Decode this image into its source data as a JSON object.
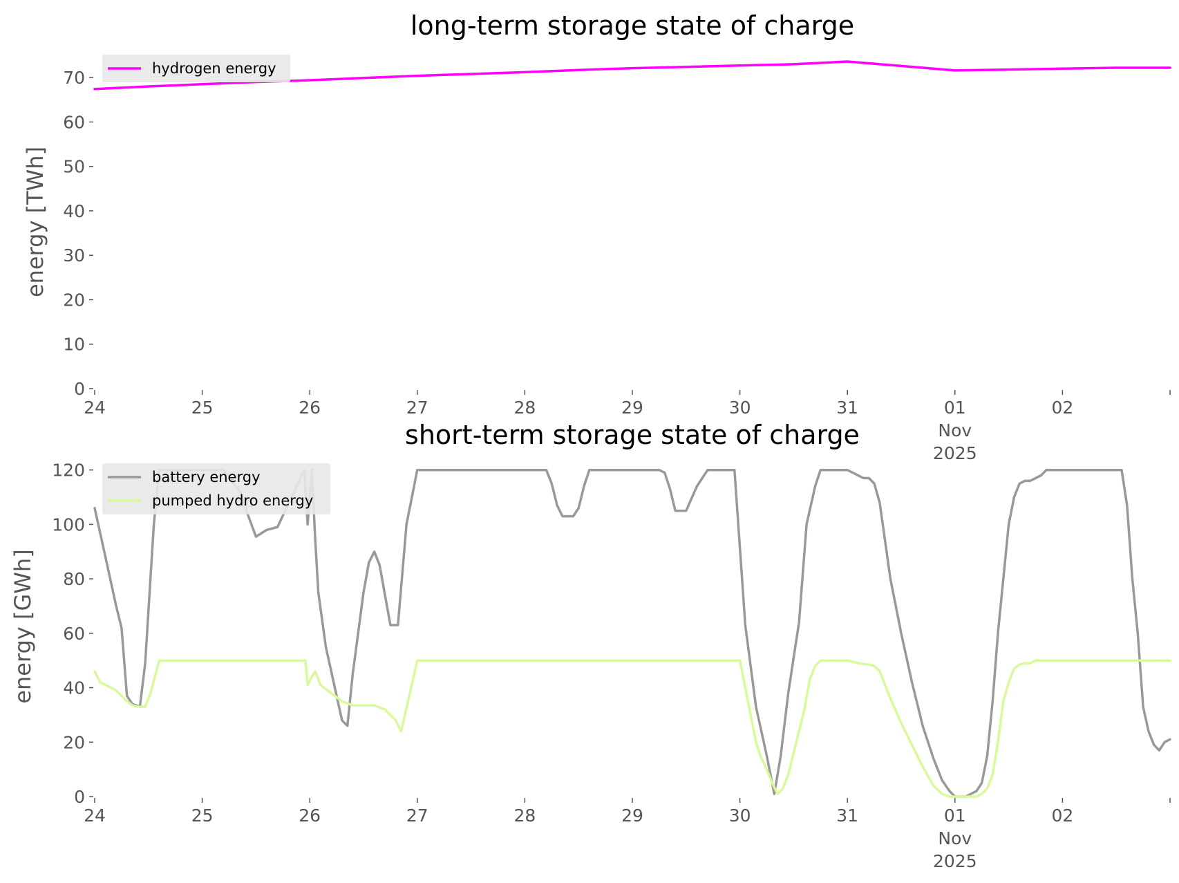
{
  "colors": {
    "hydrogen": "#ff00ff",
    "battery": "#999999",
    "pumped_hydro": "#d9f99d",
    "tick_text": "#555555",
    "legend_bg": "#e8e8e8"
  },
  "chart_data": [
    {
      "type": "line",
      "title": "long-term storage state of charge",
      "xlabel": "",
      "ylabel": "energy [TWh]",
      "ylim": [
        0,
        75
      ],
      "yticks": [
        "0",
        "10",
        "20",
        "30",
        "40",
        "50",
        "60",
        "70"
      ],
      "xlim": [
        0,
        10
      ],
      "xticks": [
        "24",
        "25",
        "26",
        "27",
        "28",
        "29",
        "30",
        "31",
        "01\nNov\n2025",
        "02"
      ],
      "grid": false,
      "legend_position": "upper-left",
      "series": [
        {
          "name": "hydrogen energy",
          "color": "#ff00ff",
          "x": [
            0,
            0.5,
            1,
            1.5,
            2,
            2.5,
            3,
            3.5,
            4,
            4.5,
            5,
            5.5,
            6,
            6.5,
            7,
            7.5,
            8,
            8.5,
            9,
            9.5,
            10
          ],
          "values": [
            67.4,
            68.0,
            68.5,
            69.0,
            69.4,
            69.9,
            70.4,
            70.8,
            71.2,
            71.7,
            72.1,
            72.4,
            72.7,
            73.0,
            73.6,
            72.6,
            71.6,
            71.8,
            72.0,
            72.2,
            72.2
          ]
        }
      ]
    },
    {
      "type": "line",
      "title": "short-term storage state of charge",
      "xlabel": "",
      "ylabel": "energy [GWh]",
      "ylim": [
        0,
        125
      ],
      "yticks": [
        "0",
        "20",
        "40",
        "60",
        "80",
        "100",
        "120"
      ],
      "xlim": [
        0,
        10
      ],
      "xticks": [
        "24",
        "25",
        "26",
        "27",
        "28",
        "29",
        "30",
        "31",
        "01\nNov\n2025",
        "02"
      ],
      "grid": false,
      "legend_position": "upper-left",
      "series": [
        {
          "name": "battery energy",
          "color": "#999999",
          "x": [
            0,
            0.1,
            0.2,
            0.25,
            0.3,
            0.35,
            0.42,
            0.47,
            0.55,
            0.6,
            0.7,
            1.2,
            1.35,
            1.42,
            1.5,
            1.52,
            1.6,
            1.7,
            1.95,
            1.98,
            2.02,
            2.05,
            2.08,
            2.15,
            2.3,
            2.35,
            2.4,
            2.5,
            2.55,
            2.6,
            2.65,
            2.7,
            2.75,
            2.82,
            2.9,
            3.0,
            4.2,
            4.25,
            4.3,
            4.35,
            4.4,
            4.45,
            4.5,
            4.55,
            4.6,
            5.15,
            5.2,
            5.25,
            5.3,
            5.35,
            5.4,
            5.45,
            5.5,
            5.6,
            5.7,
            5.95,
            6.05,
            6.15,
            6.25,
            6.32,
            6.38,
            6.45,
            6.55,
            6.62,
            6.7,
            6.75,
            6.8,
            6.85,
            7.0,
            7.1,
            7.15,
            7.2,
            7.25,
            7.3,
            7.4,
            7.5,
            7.6,
            7.7,
            7.8,
            7.88,
            7.95,
            8.0,
            8.1,
            8.2,
            8.25,
            8.3,
            8.35,
            8.4,
            8.45,
            8.5,
            8.55,
            8.6,
            8.65,
            8.7,
            8.75,
            8.8,
            8.85,
            8.9,
            9.0,
            9.4,
            9.55,
            9.6,
            9.65,
            9.7,
            9.75,
            9.8,
            9.85,
            9.9,
            9.95,
            10.0
          ],
          "values": [
            106,
            88,
            70,
            62,
            37,
            34,
            33,
            49,
            100,
            120,
            120,
            120,
            112,
            104,
            95.5,
            96,
            98,
            99,
            120,
            100,
            120,
            95,
            75,
            55,
            28,
            26,
            45,
            75,
            86,
            90,
            85,
            74,
            63,
            63,
            100,
            120,
            120,
            115,
            107,
            103,
            103,
            103,
            106,
            114,
            120,
            120,
            120,
            120,
            119,
            113,
            105,
            105,
            105,
            114,
            120,
            120,
            63,
            33,
            15,
            1,
            15,
            38,
            64,
            100,
            114,
            120,
            120,
            120,
            120,
            118,
            117,
            117,
            115,
            108,
            80,
            60,
            42,
            26,
            14,
            6,
            2,
            0,
            0,
            2,
            5,
            15,
            35,
            60,
            80,
            100,
            110,
            115,
            116,
            116,
            117,
            118,
            120,
            120,
            120,
            120,
            120,
            107,
            80,
            60,
            33,
            24,
            19,
            17,
            20,
            21
          ]
        },
        {
          "name": "pumped hydro energy",
          "color": "#d9f99d",
          "x": [
            0,
            0.05,
            0.1,
            0.2,
            0.3,
            0.35,
            0.4,
            0.47,
            0.52,
            0.6,
            1.96,
            1.98,
            2.02,
            2.05,
            2.1,
            2.2,
            2.3,
            2.4,
            2.5,
            2.6,
            2.7,
            2.8,
            2.85,
            3.0,
            6.0,
            6.1,
            6.15,
            6.2,
            6.25,
            6.3,
            6.35,
            6.4,
            6.45,
            6.5,
            6.55,
            6.6,
            6.65,
            6.7,
            6.75,
            6.8,
            6.85,
            6.9,
            7.0,
            7.1,
            7.2,
            7.25,
            7.3,
            7.4,
            7.5,
            7.6,
            7.7,
            7.8,
            7.88,
            7.95,
            8.0,
            8.1,
            8.2,
            8.25,
            8.3,
            8.35,
            8.4,
            8.45,
            8.5,
            8.55,
            8.6,
            8.65,
            8.7,
            8.75,
            8.8,
            8.85,
            8.9,
            9.0,
            10.0
          ],
          "values": [
            46,
            42,
            41,
            39,
            35,
            33.5,
            33,
            33,
            38,
            50,
            50,
            41,
            44,
            46,
            41,
            38,
            35,
            33.5,
            33.5,
            33.5,
            32,
            28,
            24,
            50,
            50,
            30,
            20,
            14,
            10,
            5,
            1,
            3,
            8,
            16,
            24,
            32,
            43,
            48,
            50,
            50,
            50,
            50,
            50,
            49,
            48.5,
            48,
            46,
            36,
            27,
            19,
            11,
            4,
            1,
            0,
            0,
            0,
            0,
            1,
            3,
            8,
            20,
            35,
            42,
            47,
            48.5,
            49,
            49,
            50,
            50,
            50,
            50,
            50,
            50
          ]
        }
      ]
    }
  ]
}
